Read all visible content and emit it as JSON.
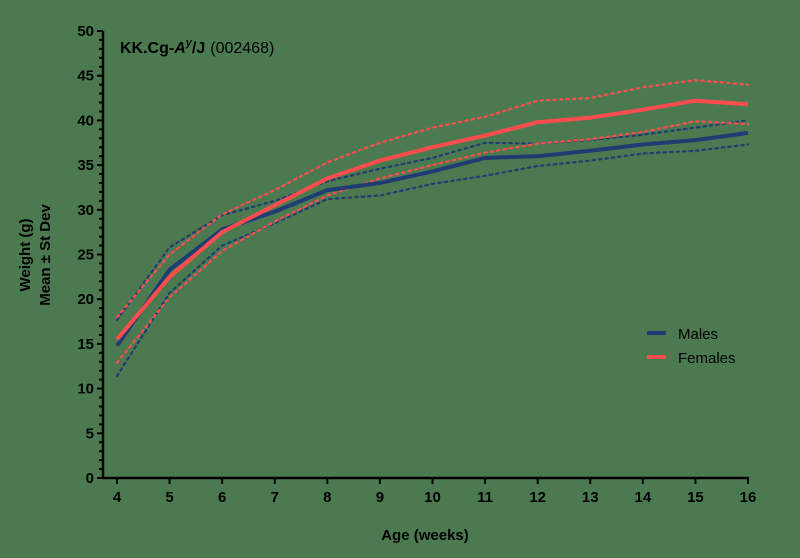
{
  "chart_data": {
    "type": "line",
    "title": "KK.Cg-A^y/J (002468)",
    "title_parts": {
      "strain": "KK.Cg-",
      "allele": "A",
      "superscript": "y",
      "suffix": "/J",
      "stock": "(002468)"
    },
    "xlabel": "Age (weeks)",
    "ylabel": "Weight (g)",
    "ylabel2": "Mean ± St Dev",
    "xlim": [
      4,
      16
    ],
    "ylim": [
      0,
      50
    ],
    "x": [
      4,
      5,
      6,
      7,
      8,
      9,
      10,
      11,
      12,
      13,
      14,
      15,
      16
    ],
    "x_tick_labels": [
      "4",
      "5",
      "6",
      "7",
      "8",
      "9",
      "10",
      "11",
      "12",
      "13",
      "14",
      "15",
      "16"
    ],
    "y_tick_labels": [
      "0",
      "5",
      "10",
      "15",
      "20",
      "25",
      "30",
      "35",
      "40",
      "45",
      "50"
    ],
    "y_minor_tick_step": 1,
    "grid": false,
    "legend_position": "right-middle",
    "series": [
      {
        "name": "Males",
        "color": "#1f3d73",
        "style": "solid",
        "values": [
          14.8,
          23.3,
          27.8,
          29.8,
          32.2,
          33.0,
          34.3,
          35.8,
          36.0,
          36.6,
          37.3,
          37.8,
          38.6
        ],
        "upper_sd": [
          17.7,
          25.8,
          29.4,
          31.0,
          33.2,
          34.6,
          35.8,
          37.5,
          37.4,
          37.8,
          38.4,
          39.2,
          40.0
        ],
        "lower_sd": [
          11.4,
          20.7,
          26.0,
          28.5,
          31.2,
          31.6,
          32.9,
          33.8,
          34.9,
          35.5,
          36.3,
          36.6,
          37.3
        ]
      },
      {
        "name": "Females",
        "color": "#ff4d4d",
        "style": "solid",
        "values": [
          15.5,
          22.5,
          27.5,
          30.5,
          33.5,
          35.5,
          37.0,
          38.3,
          39.8,
          40.3,
          41.2,
          42.2,
          41.8
        ],
        "upper_sd": [
          18.0,
          25.0,
          29.5,
          32.2,
          35.3,
          37.5,
          39.2,
          40.4,
          42.2,
          42.5,
          43.7,
          44.5,
          44.0
        ],
        "lower_sd": [
          12.9,
          20.2,
          25.4,
          28.7,
          31.6,
          33.5,
          35.0,
          36.4,
          37.4,
          37.9,
          38.7,
          39.9,
          39.6
        ]
      }
    ]
  },
  "colors": {
    "background": "#4b7a50",
    "axis": "#000000"
  }
}
